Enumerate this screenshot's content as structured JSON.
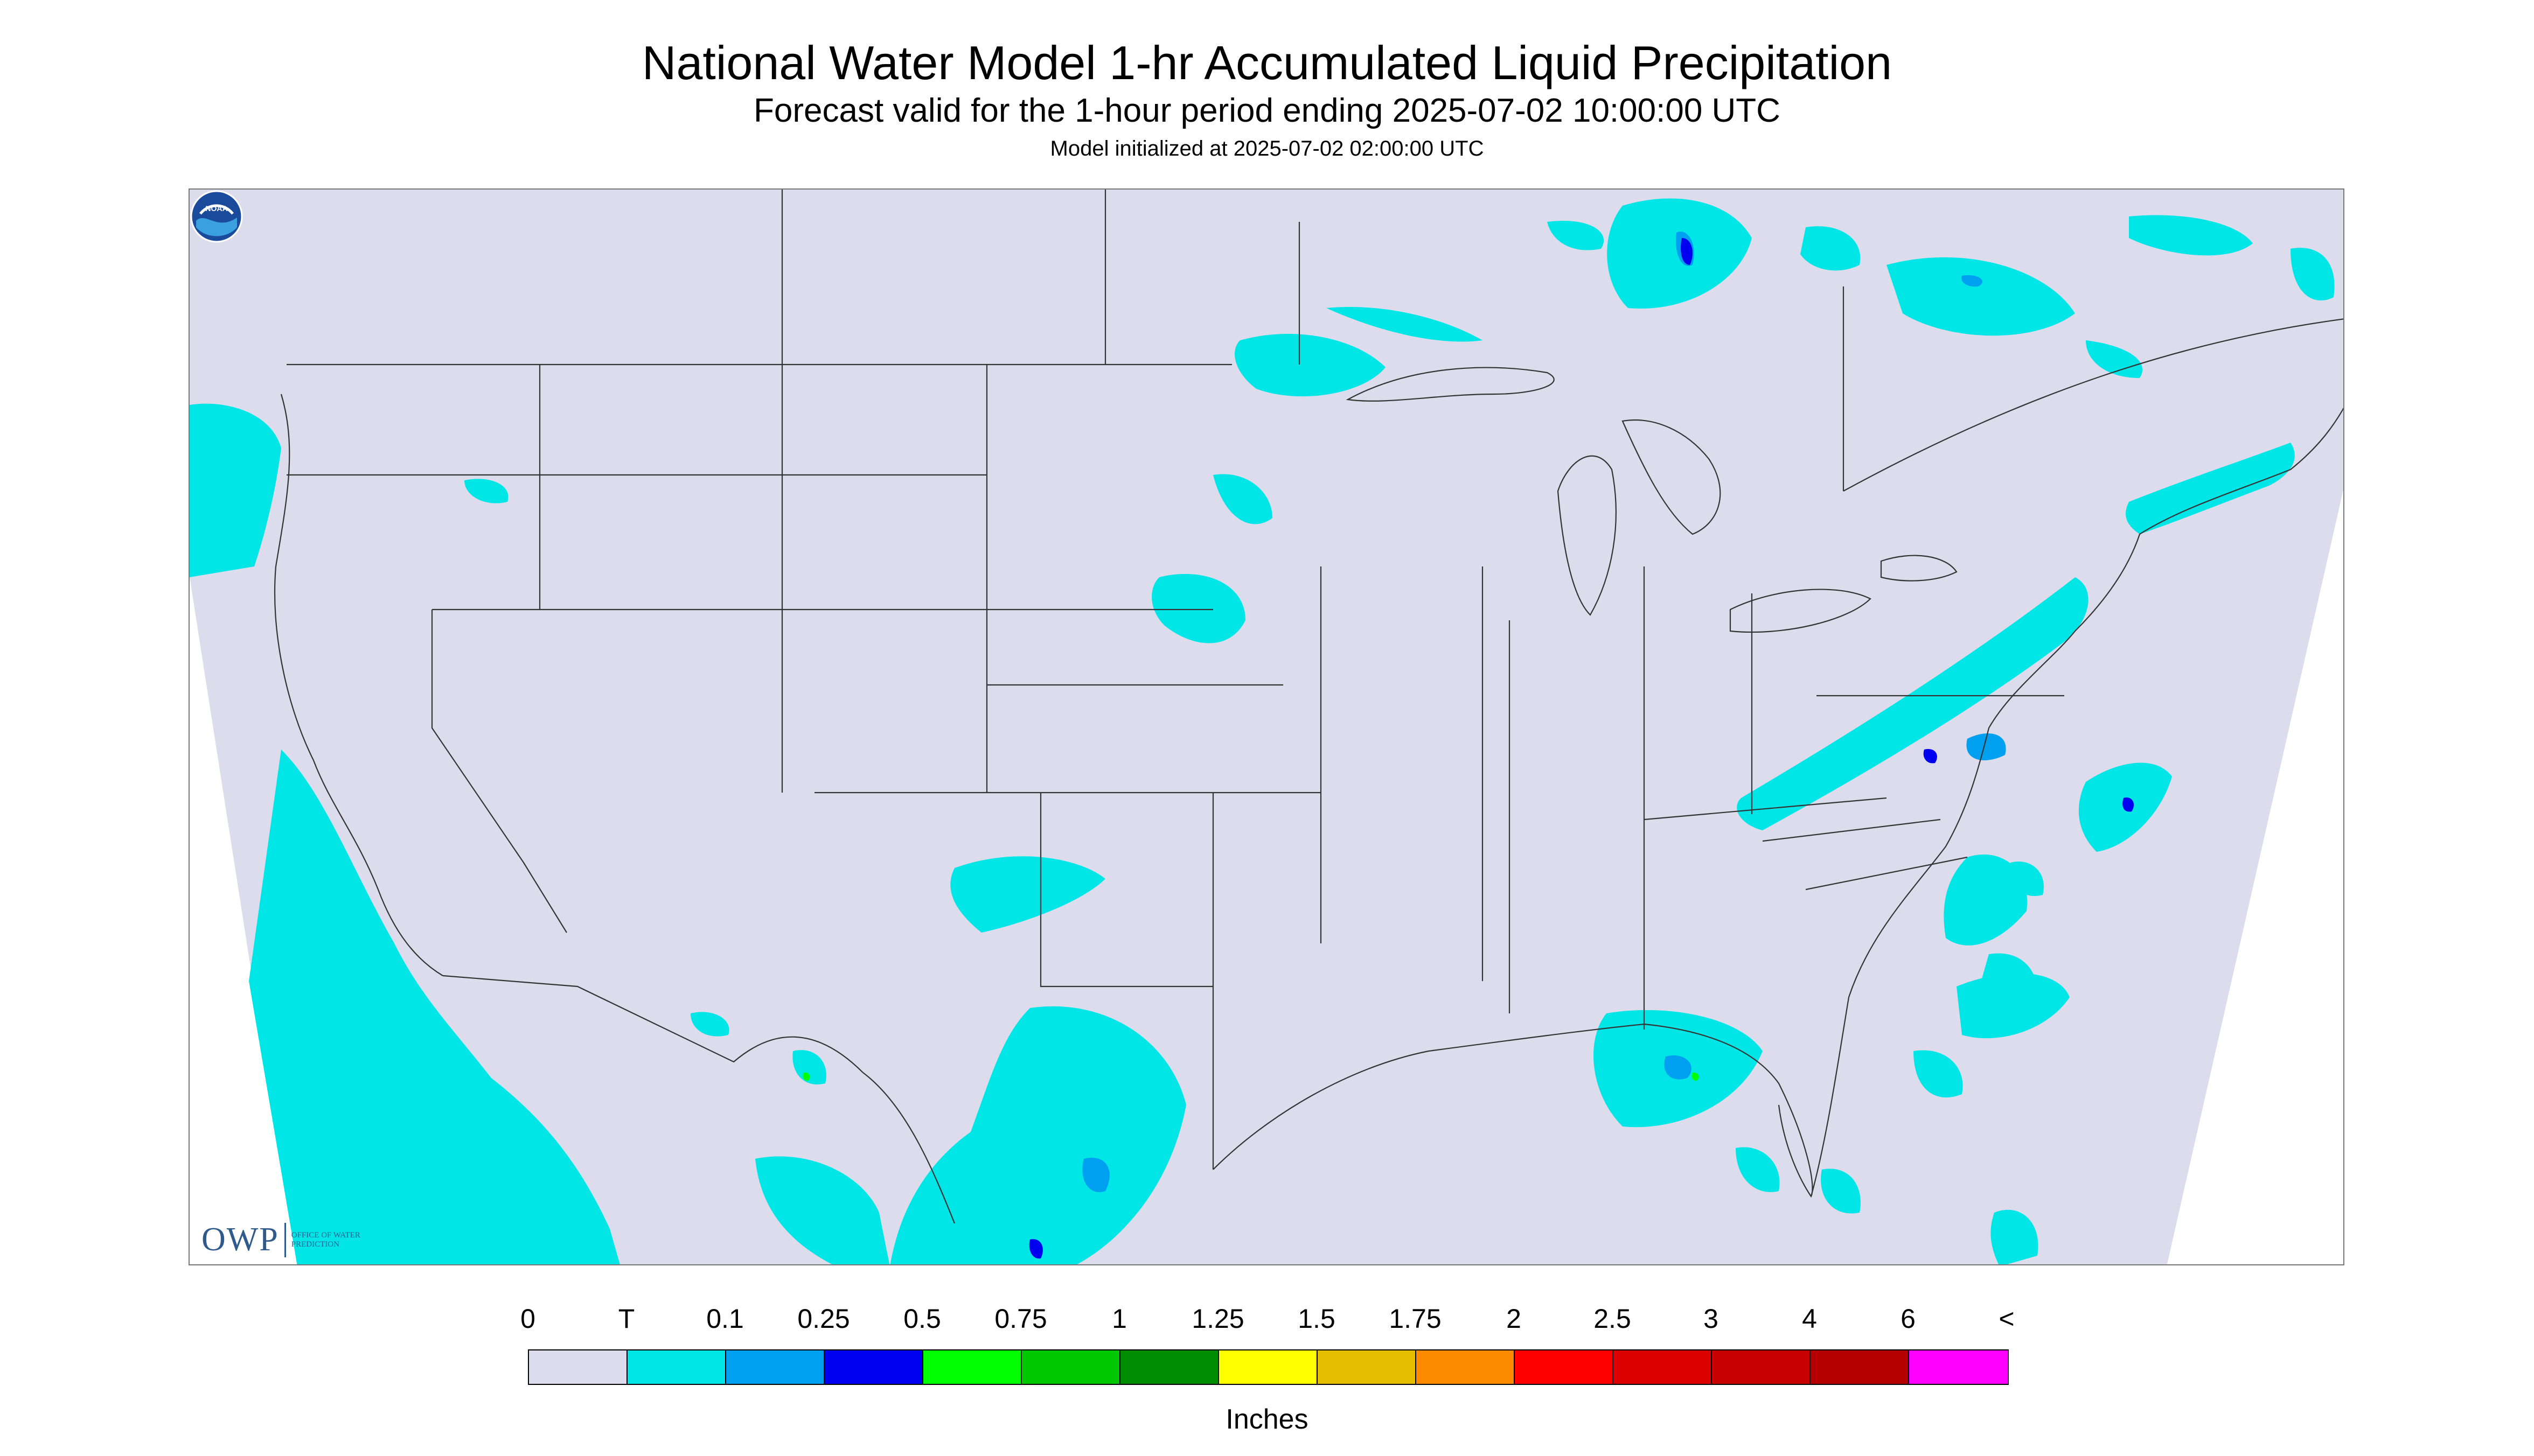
{
  "header": {
    "title": "National Water Model 1-hr Accumulated Liquid Precipitation",
    "subtitle": "Forecast valid for the 1-hour period ending 2025-07-02 10:00:00 UTC",
    "init_line": "Model initialized at 2025-07-02 02:00:00 UTC"
  },
  "logos": {
    "owp_letters": "OWP",
    "owp_text": "OFFICE OF WATER PREDICTION",
    "noaa_text": "NOAA"
  },
  "map": {
    "background_color": "#dcdcec",
    "outside_color": "#ffffff",
    "boundary_color": "#333333",
    "precip_light_color": "#00e6e6",
    "precip_mid_color": "#00a0f0",
    "precip_heavy_color": "#0000f0",
    "precip_max_color": "#00ff00"
  },
  "legend": {
    "labels": [
      "0",
      "T",
      "0.1",
      "0.25",
      "0.5",
      "0.75",
      "1",
      "1.25",
      "1.5",
      "1.75",
      "2",
      "2.5",
      "3",
      "4",
      "6",
      "<"
    ],
    "colors": [
      "#dcdcec",
      "#00e6e6",
      "#00a0f0",
      "#0000f0",
      "#00ff00",
      "#00c800",
      "#008c00",
      "#ffff00",
      "#e6be00",
      "#ff8c00",
      "#ff0000",
      "#dc0000",
      "#c80000",
      "#b40000",
      "#ff00ff",
      "#9650c8"
    ],
    "units": "Inches"
  }
}
